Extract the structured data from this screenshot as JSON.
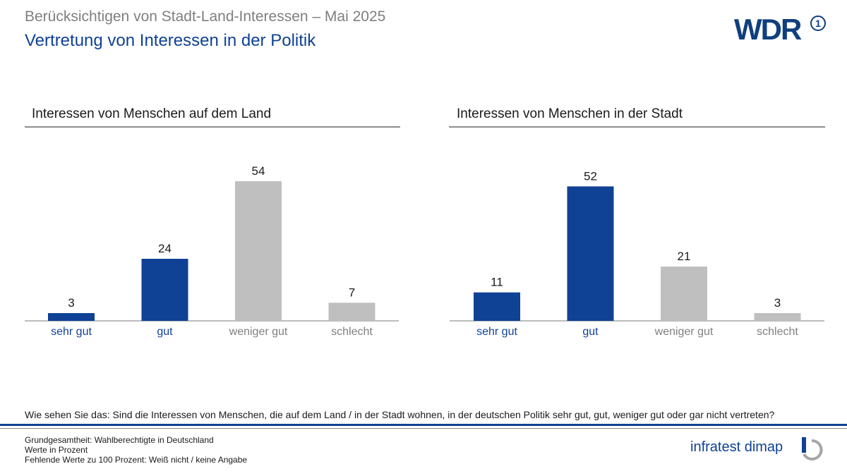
{
  "header": {
    "supertitle": "Berücksichtigen von Stadt-Land-Interessen – Mai 2025",
    "title": "Vertretung von Interessen in der Politik"
  },
  "logos": {
    "broadcaster": "WDR",
    "broadcaster_badge": "1",
    "institute": "infratest dimap"
  },
  "colors": {
    "positive": "#0f4195",
    "negative": "#bfbfbf",
    "title_blue": "#0f4195",
    "label_gray": "#7f7f7f"
  },
  "chart_data": [
    {
      "type": "bar",
      "title": "Interessen von Menschen auf dem Land",
      "categories": [
        "sehr gut",
        "gut",
        "weniger gut",
        "schlecht"
      ],
      "values": [
        3,
        24,
        54,
        7
      ],
      "ylim": [
        0,
        60
      ],
      "grid": false,
      "colors": [
        "#0f4195",
        "#0f4195",
        "#bfbfbf",
        "#bfbfbf"
      ]
    },
    {
      "type": "bar",
      "title": "Interessen von Menschen in der Stadt",
      "categories": [
        "sehr gut",
        "gut",
        "weniger gut",
        "schlecht"
      ],
      "values": [
        11,
        52,
        21,
        3
      ],
      "ylim": [
        0,
        60
      ],
      "grid": false,
      "colors": [
        "#0f4195",
        "#0f4195",
        "#bfbfbf",
        "#bfbfbf"
      ]
    }
  ],
  "footer": {
    "question": "Wie sehen Sie das: Sind die Interessen von Menschen, die auf dem Land / in der Stadt wohnen, in der deutschen Politik sehr gut, gut, weniger gut oder gar nicht vertreten?",
    "notes": [
      "Grundgesamtheit: Wahlberechtigte in Deutschland",
      "Werte in Prozent",
      "Fehlende Werte zu 100 Prozent: Weiß nicht / keine Angabe"
    ]
  }
}
